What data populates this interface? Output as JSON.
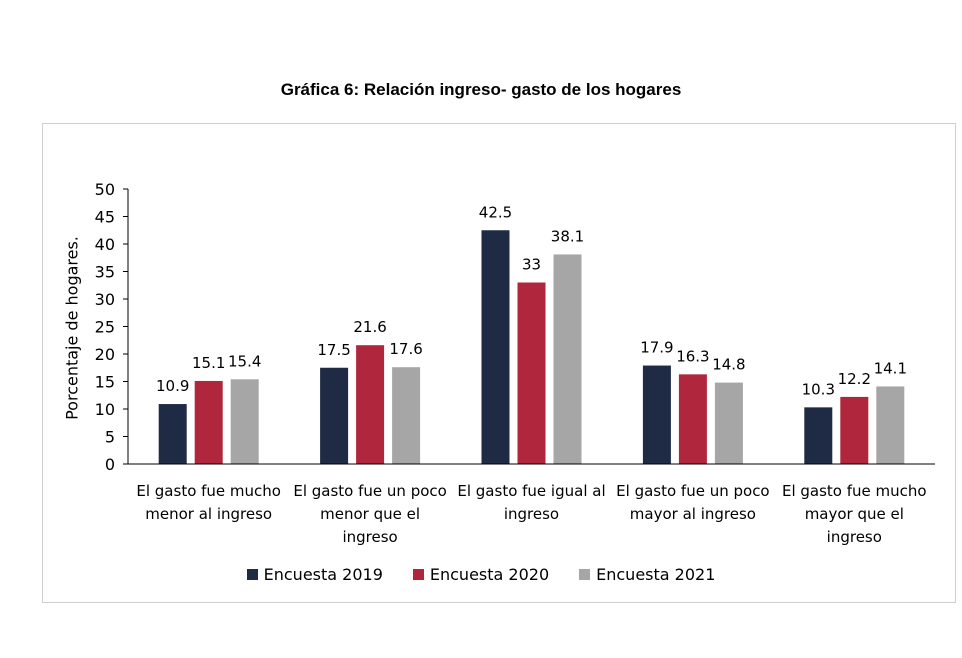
{
  "chart_data": {
    "type": "bar",
    "title": "Gráfica 6: Relación ingreso- gasto de los hogares",
    "ylabel": "Porcentaje de hogares.",
    "xlabel": "",
    "ylim": [
      0,
      50
    ],
    "yticks": [
      0,
      5,
      10,
      15,
      20,
      25,
      30,
      35,
      40,
      45,
      50
    ],
    "grid": false,
    "legend_position": "bottom",
    "categories": [
      "El gasto fue mucho menor al ingreso",
      "El gasto fue un poco menor que el ingreso",
      "El gasto fue igual al ingreso",
      "El gasto fue un poco mayor al ingreso",
      "El gasto fue mucho mayor que el ingreso"
    ],
    "category_label_lines": [
      [
        "El gasto fue mucho",
        "menor al ingreso"
      ],
      [
        "El gasto fue un poco",
        "menor que el",
        "ingreso"
      ],
      [
        "El gasto fue igual al",
        "ingreso"
      ],
      [
        "El gasto fue un poco",
        "mayor al ingreso"
      ],
      [
        "El gasto fue mucho",
        "mayor que el",
        "ingreso"
      ]
    ],
    "series": [
      {
        "name": "Encuesta 2019",
        "color": "#1f2a44",
        "values": [
          10.9,
          17.5,
          42.5,
          17.9,
          10.3
        ]
      },
      {
        "name": "Encuesta 2020",
        "color": "#b0263c",
        "values": [
          15.1,
          21.6,
          33,
          16.3,
          12.2
        ]
      },
      {
        "name": "Encuesta 2021",
        "color": "#a6a6a6",
        "values": [
          15.4,
          17.6,
          38.1,
          14.8,
          14.1
        ]
      }
    ]
  }
}
